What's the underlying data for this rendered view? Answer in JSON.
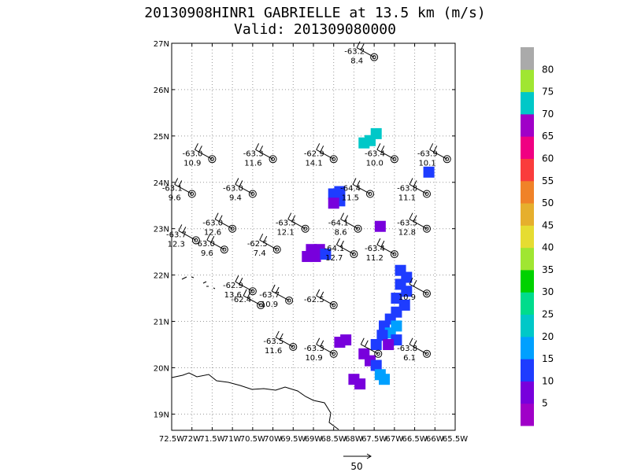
{
  "title": "20130908HINR1 GABRIELLE at 13.5 km (m/s)",
  "subtitle": "Valid: 201309080000",
  "chart_data": {
    "type": "scatter",
    "description_free": true,
    "x_ticks": [
      "72.5W",
      "72W",
      "71.5W",
      "71W",
      "70.5W",
      "70W",
      "69.5W",
      "69W",
      "68.5W",
      "68W",
      "67.5W",
      "67W",
      "66.5W",
      "66W",
      "65.5W"
    ],
    "x_tick_values": [
      -72.5,
      -72,
      -71.5,
      -71,
      -70.5,
      -70,
      -69.5,
      -69,
      -68.5,
      -68,
      -67.5,
      -67,
      -66.5,
      -66,
      -65.5
    ],
    "y_ticks": [
      "19N",
      "20N",
      "21N",
      "22N",
      "23N",
      "24N",
      "25N",
      "26N",
      "27N"
    ],
    "y_tick_values": [
      19,
      20,
      21,
      22,
      23,
      24,
      25,
      26,
      27
    ],
    "xlim": [
      -72.5,
      -65.5
    ],
    "ylim": [
      18.65,
      27.0
    ],
    "colorbar": {
      "labels": [
        "5",
        "10",
        "15",
        "20",
        "25",
        "30",
        "35",
        "40",
        "45",
        "50",
        "55",
        "60",
        "65",
        "70",
        "75",
        "80"
      ],
      "colors": [
        "#a000c8",
        "#7800dc",
        "#1e3cff",
        "#00a0ff",
        "#00c8c8",
        "#00dc8c",
        "#00d200",
        "#a0e632",
        "#e6dc32",
        "#e6af2d",
        "#f08228",
        "#fa3c3c",
        "#f00082",
        "#a000c8",
        "#00c8c8",
        "#a0e632",
        "#aaaaaa"
      ]
    },
    "stations": [
      {
        "lon": -67.5,
        "lat": 26.7,
        "t": "-63.2",
        "w": "8.4"
      },
      {
        "lon": -71.5,
        "lat": 24.5,
        "t": "-63.0",
        "w": "10.9"
      },
      {
        "lon": -70.0,
        "lat": 24.5,
        "t": "-63.3",
        "w": "11.6"
      },
      {
        "lon": -68.5,
        "lat": 24.5,
        "t": "-62.9",
        "w": "14.1"
      },
      {
        "lon": -67.0,
        "lat": 24.5,
        "t": "-63.4",
        "w": "10.0"
      },
      {
        "lon": -65.7,
        "lat": 24.5,
        "t": "-63.9",
        "w": "10.1"
      },
      {
        "lon": -72.0,
        "lat": 23.75,
        "t": "-63.1",
        "w": "9.6"
      },
      {
        "lon": -70.5,
        "lat": 23.75,
        "t": "-63.0",
        "w": "9.4"
      },
      {
        "lon": -67.6,
        "lat": 23.75,
        "t": "-64.4",
        "w": "11.5"
      },
      {
        "lon": -66.2,
        "lat": 23.75,
        "t": "-63.8",
        "w": "11.1"
      },
      {
        "lon": -71.0,
        "lat": 23.0,
        "t": "-63.0",
        "w": "12.6"
      },
      {
        "lon": -69.2,
        "lat": 23.0,
        "t": "-63.5",
        "w": "12.1"
      },
      {
        "lon": -67.9,
        "lat": 23.0,
        "t": "-64.1",
        "w": "8.6"
      },
      {
        "lon": -66.2,
        "lat": 23.0,
        "t": "-63.5",
        "w": "12.8"
      },
      {
        "lon": -71.9,
        "lat": 22.75,
        "t": "-63.7",
        "w": "12.3"
      },
      {
        "lon": -71.2,
        "lat": 22.55,
        "t": "-63.0",
        "w": "9.6"
      },
      {
        "lon": -69.9,
        "lat": 22.55,
        "t": "-62.5",
        "w": "7.4"
      },
      {
        "lon": -68.0,
        "lat": 22.45,
        "t": "-64.1",
        "w": "12.7"
      },
      {
        "lon": -67.0,
        "lat": 22.45,
        "t": "-63.4",
        "w": "11.2"
      },
      {
        "lon": -70.5,
        "lat": 21.65,
        "t": "-62.9",
        "w": "13.6"
      },
      {
        "lon": -69.6,
        "lat": 21.45,
        "t": "-63.7",
        "w": "10.9"
      },
      {
        "lon": -68.5,
        "lat": 21.35,
        "t": "-62.5",
        "w": ""
      },
      {
        "lon": -70.3,
        "lat": 21.35,
        "t": "-62.4",
        "w": ""
      },
      {
        "lon": -66.2,
        "lat": 21.6,
        "t": "",
        "w": "10.9"
      },
      {
        "lon": -69.5,
        "lat": 20.45,
        "t": "-63.5",
        "w": "11.6"
      },
      {
        "lon": -68.5,
        "lat": 20.3,
        "t": "-63.3",
        "w": "10.9"
      },
      {
        "lon": -66.2,
        "lat": 20.3,
        "t": "-63.8",
        "w": "6.1"
      },
      {
        "lon": -67.4,
        "lat": 20.3,
        "t": "",
        "w": ""
      }
    ],
    "cells": [
      {
        "lon": -67.45,
        "lat": 25.05,
        "c": "#00c8c8"
      },
      {
        "lon": -67.6,
        "lat": 24.9,
        "c": "#00c8c8"
      },
      {
        "lon": -67.75,
        "lat": 24.85,
        "c": "#00c8c8"
      },
      {
        "lon": -66.15,
        "lat": 24.22,
        "c": "#1e3cff"
      },
      {
        "lon": -68.35,
        "lat": 23.8,
        "c": "#1e3cff"
      },
      {
        "lon": -68.5,
        "lat": 23.75,
        "c": "#1e3cff"
      },
      {
        "lon": -68.35,
        "lat": 23.6,
        "c": "#1e3cff"
      },
      {
        "lon": -68.5,
        "lat": 23.55,
        "c": "#7800dc"
      },
      {
        "lon": -67.35,
        "lat": 23.05,
        "c": "#7800dc"
      },
      {
        "lon": -69.05,
        "lat": 22.55,
        "c": "#7800dc"
      },
      {
        "lon": -68.85,
        "lat": 22.55,
        "c": "#7800dc"
      },
      {
        "lon": -69.15,
        "lat": 22.4,
        "c": "#7800dc"
      },
      {
        "lon": -68.95,
        "lat": 22.4,
        "c": "#7800dc"
      },
      {
        "lon": -68.7,
        "lat": 22.45,
        "c": "#1e3cff"
      },
      {
        "lon": -66.85,
        "lat": 22.1,
        "c": "#1e3cff"
      },
      {
        "lon": -66.7,
        "lat": 21.95,
        "c": "#1e3cff"
      },
      {
        "lon": -66.85,
        "lat": 21.8,
        "c": "#1e3cff"
      },
      {
        "lon": -66.7,
        "lat": 21.65,
        "c": "#1e3cff"
      },
      {
        "lon": -66.95,
        "lat": 21.5,
        "c": "#1e3cff"
      },
      {
        "lon": -66.75,
        "lat": 21.35,
        "c": "#1e3cff"
      },
      {
        "lon": -66.95,
        "lat": 21.2,
        "c": "#1e3cff"
      },
      {
        "lon": -67.1,
        "lat": 21.05,
        "c": "#1e3cff"
      },
      {
        "lon": -67.25,
        "lat": 20.9,
        "c": "#1e3cff"
      },
      {
        "lon": -66.95,
        "lat": 20.9,
        "c": "#00a0ff"
      },
      {
        "lon": -67.1,
        "lat": 20.75,
        "c": "#00a0ff"
      },
      {
        "lon": -67.3,
        "lat": 20.7,
        "c": "#1e3cff"
      },
      {
        "lon": -66.95,
        "lat": 20.6,
        "c": "#1e3cff"
      },
      {
        "lon": -67.15,
        "lat": 20.5,
        "c": "#7800dc"
      },
      {
        "lon": -67.45,
        "lat": 20.5,
        "c": "#1e3cff"
      },
      {
        "lon": -68.2,
        "lat": 20.6,
        "c": "#7800dc"
      },
      {
        "lon": -68.35,
        "lat": 20.55,
        "c": "#7800dc"
      },
      {
        "lon": -67.75,
        "lat": 20.3,
        "c": "#7800dc"
      },
      {
        "lon": -67.6,
        "lat": 20.15,
        "c": "#7800dc"
      },
      {
        "lon": -67.45,
        "lat": 20.05,
        "c": "#1e3cff"
      },
      {
        "lon": -67.35,
        "lat": 19.85,
        "c": "#00a0ff"
      },
      {
        "lon": -67.25,
        "lat": 19.75,
        "c": "#00a0ff"
      },
      {
        "lon": -68.0,
        "lat": 19.75,
        "c": "#7800dc"
      },
      {
        "lon": -67.85,
        "lat": 19.65,
        "c": "#7800dc"
      }
    ],
    "vector_scale_label": "50"
  }
}
